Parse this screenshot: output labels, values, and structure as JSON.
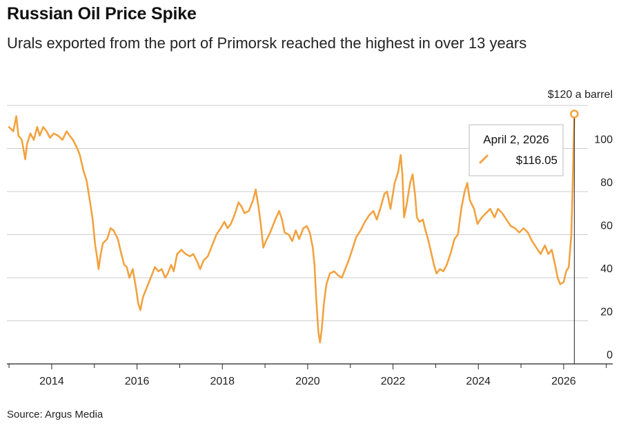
{
  "header": {
    "title": "Russian Oil Price Spike",
    "subtitle": "Urals exported from the port of Primorsk reached the highest in over 13 years"
  },
  "footer": {
    "source": "Source: Argus Media"
  },
  "colors": {
    "line": "#F2A23F",
    "grid": "#cccccc",
    "axis": "#222222",
    "marker_line": "#222222"
  },
  "chart_data": {
    "type": "line",
    "title": "Russian Oil Price Spike",
    "unit_label": "$120 a barrel",
    "xlim": [
      2012.95,
      2027.15
    ],
    "ylim": [
      0,
      120
    ],
    "y_ticks": [
      0,
      20,
      40,
      60,
      80,
      100
    ],
    "y_tick_labels": [
      "0",
      "20",
      "40",
      "60",
      "80",
      "100"
    ],
    "x_ticks": [
      2014,
      2016,
      2018,
      2020,
      2022,
      2024,
      2026
    ],
    "x_tick_labels": [
      "2014",
      "2016",
      "2018",
      "2020",
      "2022",
      "2024",
      "2026"
    ],
    "grid": "horizontal",
    "series": [
      {
        "points": [
          [
            2013.0,
            110
          ],
          [
            2013.1,
            108
          ],
          [
            2013.17,
            115
          ],
          [
            2013.22,
            106
          ],
          [
            2013.3,
            104
          ],
          [
            2013.38,
            95
          ],
          [
            2013.42,
            102
          ],
          [
            2013.5,
            107
          ],
          [
            2013.58,
            104
          ],
          [
            2013.66,
            110
          ],
          [
            2013.72,
            106
          ],
          [
            2013.8,
            110
          ],
          [
            2013.88,
            108
          ],
          [
            2013.96,
            105
          ],
          [
            2014.05,
            107
          ],
          [
            2014.15,
            106
          ],
          [
            2014.25,
            104
          ],
          [
            2014.35,
            108
          ],
          [
            2014.42,
            106
          ],
          [
            2014.5,
            104
          ],
          [
            2014.6,
            100
          ],
          [
            2014.66,
            97
          ],
          [
            2014.74,
            90
          ],
          [
            2014.82,
            85
          ],
          [
            2014.9,
            75
          ],
          [
            2014.96,
            67
          ],
          [
            2015.02,
            55
          ],
          [
            2015.06,
            50
          ],
          [
            2015.1,
            44
          ],
          [
            2015.14,
            50
          ],
          [
            2015.2,
            56
          ],
          [
            2015.3,
            58
          ],
          [
            2015.38,
            63
          ],
          [
            2015.45,
            62
          ],
          [
            2015.55,
            58
          ],
          [
            2015.62,
            52
          ],
          [
            2015.7,
            46
          ],
          [
            2015.76,
            45
          ],
          [
            2015.82,
            40
          ],
          [
            2015.9,
            44
          ],
          [
            2015.97,
            36
          ],
          [
            2016.03,
            28
          ],
          [
            2016.08,
            25
          ],
          [
            2016.14,
            31
          ],
          [
            2016.22,
            35
          ],
          [
            2016.32,
            40
          ],
          [
            2016.42,
            45
          ],
          [
            2016.5,
            43
          ],
          [
            2016.58,
            44
          ],
          [
            2016.66,
            40
          ],
          [
            2016.72,
            42
          ],
          [
            2016.8,
            46
          ],
          [
            2016.86,
            43
          ],
          [
            2016.94,
            51
          ],
          [
            2017.04,
            53
          ],
          [
            2017.14,
            51
          ],
          [
            2017.24,
            50
          ],
          [
            2017.32,
            51
          ],
          [
            2017.42,
            47
          ],
          [
            2017.48,
            44
          ],
          [
            2017.56,
            48
          ],
          [
            2017.66,
            50
          ],
          [
            2017.76,
            55
          ],
          [
            2017.86,
            60
          ],
          [
            2017.96,
            63
          ],
          [
            2018.05,
            66
          ],
          [
            2018.12,
            63
          ],
          [
            2018.2,
            65
          ],
          [
            2018.3,
            70
          ],
          [
            2018.38,
            75
          ],
          [
            2018.45,
            73
          ],
          [
            2018.52,
            70
          ],
          [
            2018.62,
            71
          ],
          [
            2018.72,
            76
          ],
          [
            2018.78,
            81
          ],
          [
            2018.84,
            74
          ],
          [
            2018.9,
            65
          ],
          [
            2018.96,
            54
          ],
          [
            2019.02,
            57
          ],
          [
            2019.12,
            61
          ],
          [
            2019.24,
            67
          ],
          [
            2019.33,
            71
          ],
          [
            2019.4,
            67
          ],
          [
            2019.46,
            61
          ],
          [
            2019.56,
            60
          ],
          [
            2019.64,
            57
          ],
          [
            2019.72,
            62
          ],
          [
            2019.8,
            58
          ],
          [
            2019.9,
            63
          ],
          [
            2019.98,
            64
          ],
          [
            2020.05,
            61
          ],
          [
            2020.12,
            54
          ],
          [
            2020.16,
            46
          ],
          [
            2020.2,
            30
          ],
          [
            2020.25,
            15
          ],
          [
            2020.29,
            10
          ],
          [
            2020.33,
            16
          ],
          [
            2020.38,
            28
          ],
          [
            2020.44,
            37
          ],
          [
            2020.52,
            42
          ],
          [
            2020.62,
            43
          ],
          [
            2020.72,
            41
          ],
          [
            2020.8,
            40
          ],
          [
            2020.88,
            44
          ],
          [
            2020.96,
            48
          ],
          [
            2021.06,
            54
          ],
          [
            2021.14,
            59
          ],
          [
            2021.24,
            62
          ],
          [
            2021.34,
            66
          ],
          [
            2021.44,
            69
          ],
          [
            2021.54,
            71
          ],
          [
            2021.62,
            67
          ],
          [
            2021.7,
            72
          ],
          [
            2021.8,
            79
          ],
          [
            2021.86,
            80
          ],
          [
            2021.94,
            72
          ],
          [
            2022.04,
            84
          ],
          [
            2022.12,
            89
          ],
          [
            2022.18,
            97
          ],
          [
            2022.22,
            88
          ],
          [
            2022.26,
            68
          ],
          [
            2022.32,
            74
          ],
          [
            2022.4,
            84
          ],
          [
            2022.46,
            88
          ],
          [
            2022.52,
            78
          ],
          [
            2022.56,
            68
          ],
          [
            2022.62,
            66
          ],
          [
            2022.7,
            67
          ],
          [
            2022.76,
            62
          ],
          [
            2022.82,
            58
          ],
          [
            2022.88,
            53
          ],
          [
            2022.96,
            46
          ],
          [
            2023.02,
            42
          ],
          [
            2023.1,
            44
          ],
          [
            2023.18,
            43
          ],
          [
            2023.26,
            46
          ],
          [
            2023.36,
            52
          ],
          [
            2023.44,
            58
          ],
          [
            2023.52,
            60
          ],
          [
            2023.6,
            72
          ],
          [
            2023.68,
            80
          ],
          [
            2023.74,
            84
          ],
          [
            2023.8,
            76
          ],
          [
            2023.9,
            72
          ],
          [
            2023.98,
            65
          ],
          [
            2024.08,
            68
          ],
          [
            2024.18,
            70
          ],
          [
            2024.28,
            72
          ],
          [
            2024.38,
            68
          ],
          [
            2024.46,
            72
          ],
          [
            2024.56,
            70
          ],
          [
            2024.66,
            67
          ],
          [
            2024.76,
            64
          ],
          [
            2024.86,
            63
          ],
          [
            2024.96,
            61
          ],
          [
            2025.06,
            63
          ],
          [
            2025.16,
            61
          ],
          [
            2025.26,
            57
          ],
          [
            2025.36,
            54
          ],
          [
            2025.46,
            51
          ],
          [
            2025.56,
            55
          ],
          [
            2025.64,
            51
          ],
          [
            2025.72,
            53
          ],
          [
            2025.8,
            46
          ],
          [
            2025.86,
            40
          ],
          [
            2025.92,
            37
          ],
          [
            2026.0,
            38
          ],
          [
            2026.06,
            43
          ],
          [
            2026.12,
            45
          ],
          [
            2026.18,
            60
          ],
          [
            2026.2,
            75
          ],
          [
            2026.22,
            90
          ],
          [
            2026.25,
            116.05
          ]
        ]
      }
    ],
    "highlight": {
      "date_label": "April 2, 2026",
      "value_label": "$116.05",
      "x": 2026.25,
      "y": 116.05
    }
  }
}
